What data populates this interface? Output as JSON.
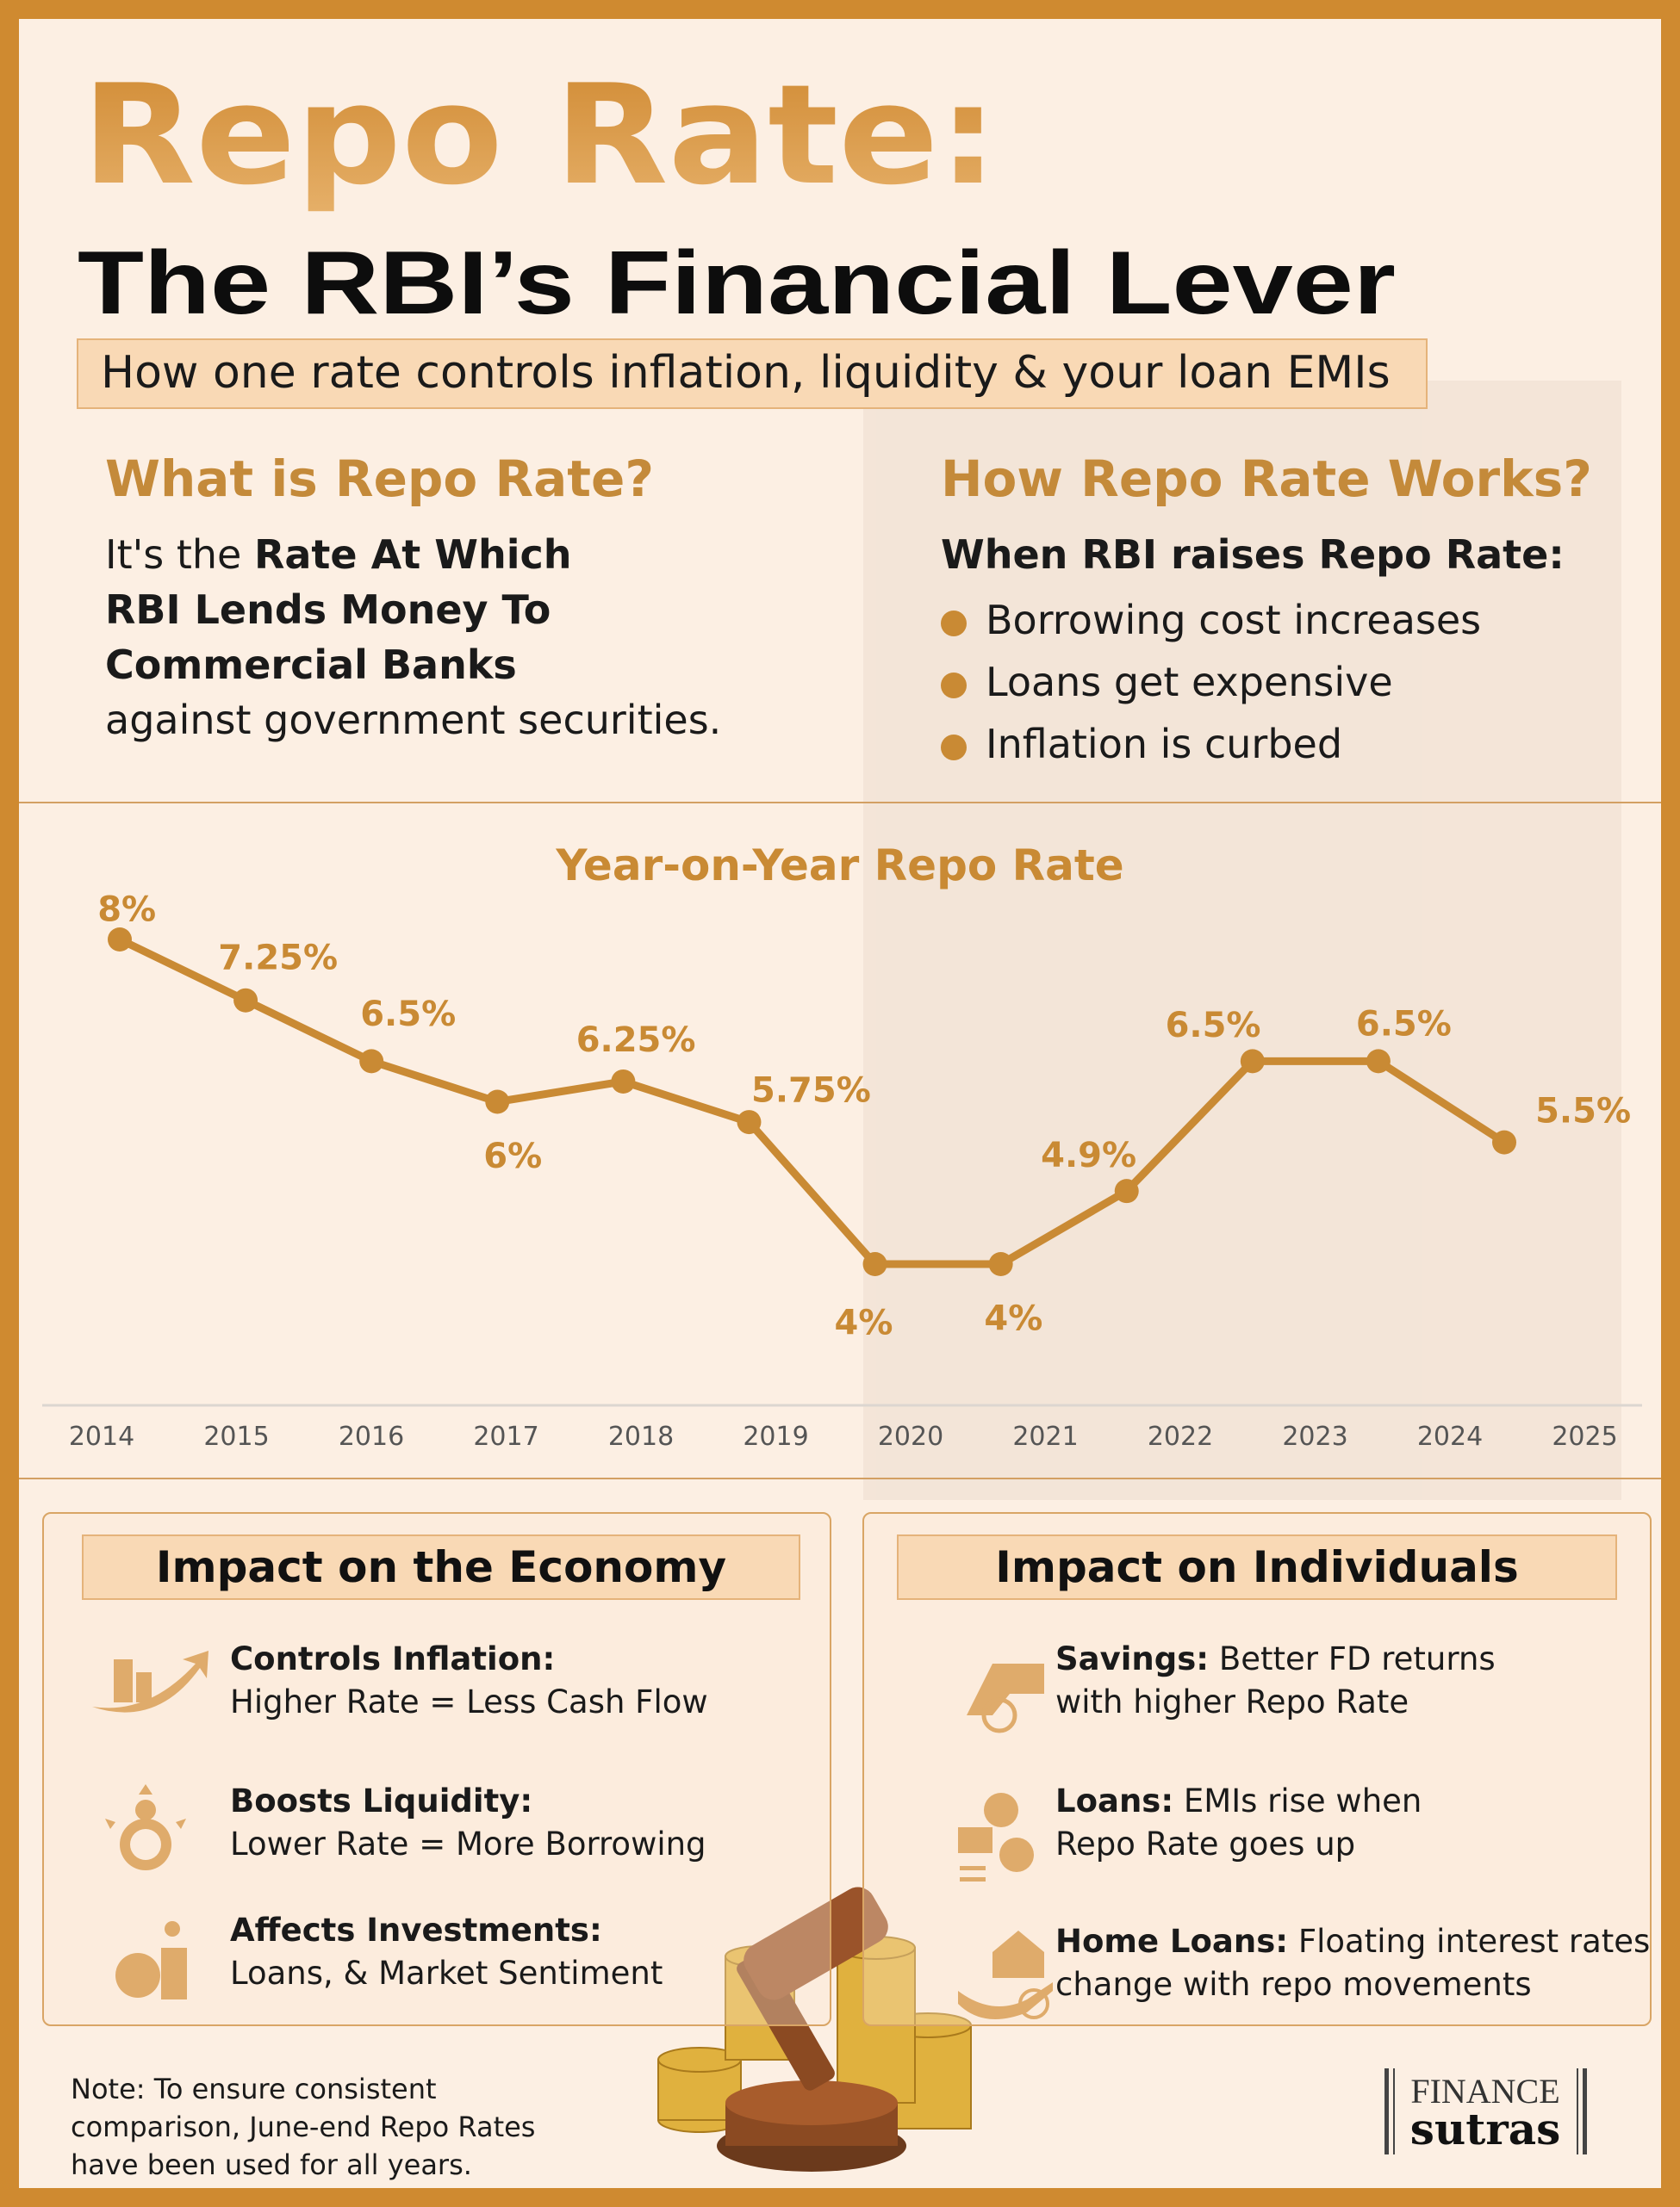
{
  "header": {
    "title": "Repo Rate:",
    "subtitle": "The RBI’s Financial Lever",
    "tagline": "How one rate controls inflation, liquidity & your loan EMIs"
  },
  "what": {
    "heading": "What is Repo Rate?",
    "intro": "It's the",
    "highlight": [
      "Rate At Which",
      "RBI Lends Money To",
      "Commercial Banks"
    ],
    "outro": "against government securities."
  },
  "how": {
    "heading": "How Repo Rate Works?",
    "lead": "When RBI raises Repo Rate:",
    "bullets": [
      "Borrowing cost increases",
      "Loans get expensive",
      "Inflation is curbed"
    ]
  },
  "chart_data": {
    "type": "line",
    "title": "Year-on-Year Repo Rate",
    "color": "#c98a34",
    "categories": [
      "2014",
      "2015",
      "2016",
      "2017",
      "2018",
      "2019",
      "2020",
      "2021",
      "2022",
      "2023",
      "2024",
      "2025"
    ],
    "values": [
      8,
      7.25,
      6.5,
      6,
      6.25,
      5.75,
      4,
      4,
      4.9,
      6.5,
      6.5,
      5.5
    ],
    "value_labels": [
      "8%",
      "7.25%",
      "6.5%",
      "6%",
      "6.25%",
      "5.75%",
      "4%",
      "4%",
      "4.9%",
      "6.5%",
      "6.5%",
      "5.5%"
    ]
  },
  "economy": {
    "heading": "Impact on the Economy",
    "items": [
      {
        "title": "Controls Inflation:",
        "lines": [
          "Higher Rate = Less Cash Flow"
        ]
      },
      {
        "title": "Boosts Liquidity:",
        "lines": [
          "Lower Rate = More Borrowing"
        ]
      },
      {
        "title": "Affects Investments:",
        "lines": [
          "Loans, & Market Sentiment"
        ]
      }
    ]
  },
  "individuals": {
    "heading": "Impact on Individuals",
    "items": [
      {
        "title": "Savings:",
        "lines": [
          "Better FD returns",
          "with higher Repo Rate"
        ]
      },
      {
        "title": "Loans:",
        "lines": [
          "EMIs rise when",
          "Repo Rate goes up"
        ]
      },
      {
        "title": "Home Loans:",
        "lines": [
          "Floating interest rates",
          "change with repo movements"
        ]
      }
    ]
  },
  "note": {
    "lines": [
      "Note: To ensure consistent",
      "comparison, June-end Repo Rates",
      "have been used for all years."
    ]
  },
  "brand": {
    "top": "FINANCE",
    "bottom": "sutras"
  }
}
